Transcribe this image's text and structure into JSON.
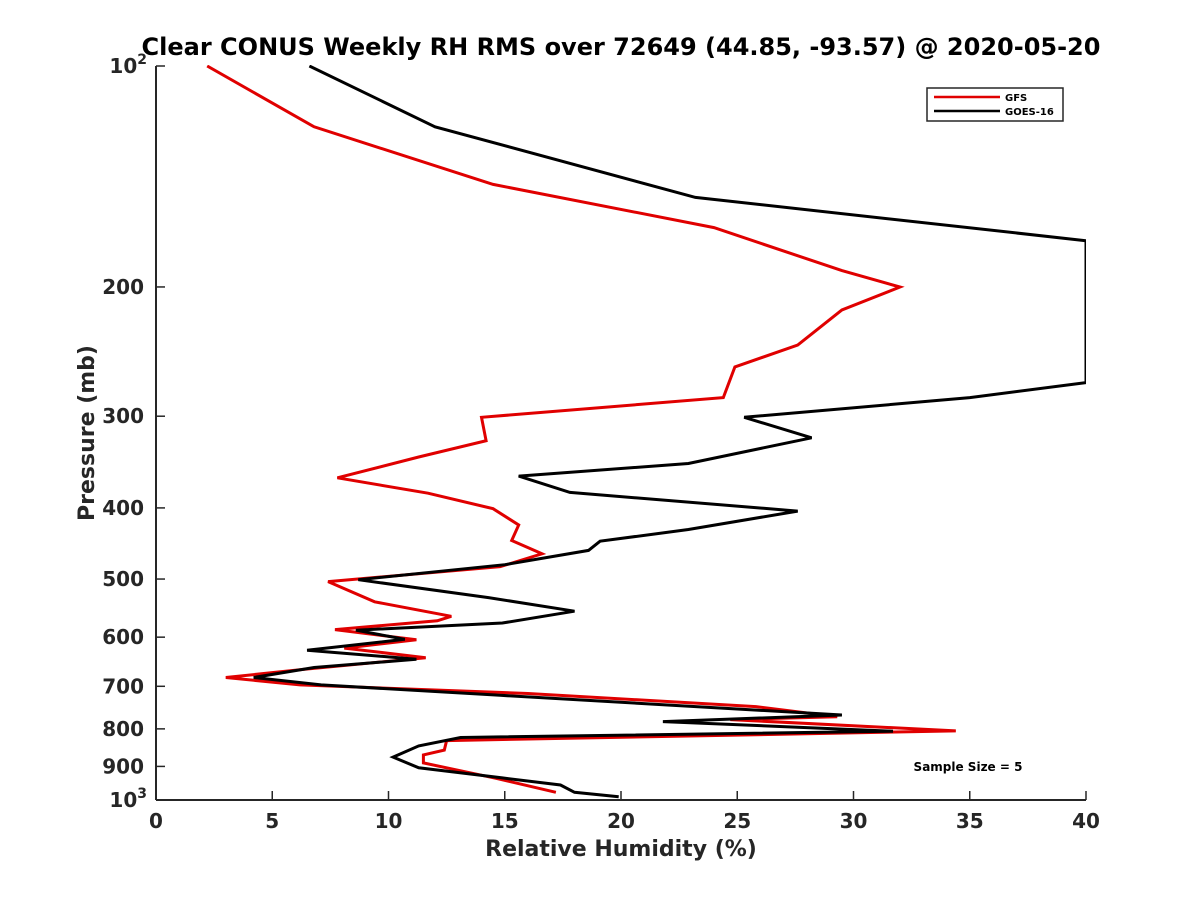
{
  "chart_data": {
    "type": "line",
    "title": "Clear CONUS Weekly RH RMS over 72649 (44.85, -93.57) @ 2020-05-20",
    "xlabel": "Relative Humidity (%)",
    "ylabel": "Pressure (mb)",
    "xlim": [
      0,
      40
    ],
    "ylim": [
      100,
      1000
    ],
    "y_scale": "log",
    "y_direction": "reversed",
    "x_ticks": [
      "0",
      "5",
      "10",
      "15",
      "20",
      "25",
      "30",
      "35",
      "40"
    ],
    "y_ticks": [
      {
        "value": 100,
        "base": "10",
        "exp": "2"
      },
      {
        "value": 200,
        "label": "200"
      },
      {
        "value": 300,
        "label": "300"
      },
      {
        "value": 400,
        "label": "400"
      },
      {
        "value": 500,
        "label": "500"
      },
      {
        "value": 600,
        "label": "600"
      },
      {
        "value": 700,
        "label": "700"
      },
      {
        "value": 800,
        "label": "800"
      },
      {
        "value": 900,
        "label": "900"
      },
      {
        "value": 1000,
        "base": "10",
        "exp": "3"
      }
    ],
    "grid": false,
    "legend_position": "top-right",
    "annotation": "Sample Size = 5",
    "series": [
      {
        "name": "GFS",
        "color": "#e00000",
        "points": [
          [
            2.2,
            100
          ],
          [
            6.8,
            121
          ],
          [
            14.5,
            145
          ],
          [
            24.0,
            166
          ],
          [
            29.5,
            190
          ],
          [
            32.0,
            200
          ],
          [
            29.5,
            215
          ],
          [
            27.6,
            240
          ],
          [
            24.9,
            257
          ],
          [
            24.4,
            283
          ],
          [
            14.0,
            301
          ],
          [
            14.2,
            324
          ],
          [
            11.3,
            341
          ],
          [
            7.8,
            364
          ],
          [
            11.7,
            382
          ],
          [
            14.5,
            401
          ],
          [
            15.6,
            422
          ],
          [
            15.3,
            443
          ],
          [
            16.6,
            462
          ],
          [
            14.8,
            481
          ],
          [
            7.4,
            504
          ],
          [
            9.4,
            537
          ],
          [
            12.7,
            562
          ],
          [
            12.1,
            570
          ],
          [
            7.7,
            586
          ],
          [
            11.2,
            605
          ],
          [
            8.1,
            621
          ],
          [
            11.6,
            640
          ],
          [
            6.5,
            663
          ],
          [
            3.0,
            681
          ],
          [
            6.2,
            697
          ],
          [
            16.0,
            716
          ],
          [
            25.8,
            746
          ],
          [
            29.3,
            770
          ],
          [
            24.7,
            777
          ],
          [
            34.4,
            805
          ],
          [
            12.5,
            830
          ],
          [
            12.4,
            855
          ],
          [
            11.5,
            868
          ],
          [
            11.5,
            890
          ],
          [
            14.6,
            934
          ],
          [
            17.2,
            976
          ]
        ]
      },
      {
        "name": "GOES-16",
        "color": "#000000",
        "points": [
          [
            6.6,
            100
          ],
          [
            12.0,
            121
          ],
          [
            23.2,
            151
          ],
          [
            40.0,
            173
          ],
          [
            40.0,
            270
          ],
          [
            35.0,
            283
          ],
          [
            25.3,
            301
          ],
          [
            28.2,
            321
          ],
          [
            22.9,
            348
          ],
          [
            15.6,
            362
          ],
          [
            17.8,
            381
          ],
          [
            27.6,
            404
          ],
          [
            22.9,
            428
          ],
          [
            19.1,
            444
          ],
          [
            18.6,
            457
          ],
          [
            15.0,
            478
          ],
          [
            8.7,
            501
          ],
          [
            14.3,
            530
          ],
          [
            18.0,
            553
          ],
          [
            14.9,
            574
          ],
          [
            8.6,
            587
          ],
          [
            10.7,
            604
          ],
          [
            6.5,
            625
          ],
          [
            11.2,
            643
          ],
          [
            6.8,
            660
          ],
          [
            4.2,
            681
          ],
          [
            7.1,
            697
          ],
          [
            14.8,
            720
          ],
          [
            29.5,
            766
          ],
          [
            21.8,
            782
          ],
          [
            31.7,
            806
          ],
          [
            13.1,
            822
          ],
          [
            11.3,
            844
          ],
          [
            10.2,
            874
          ],
          [
            11.3,
            904
          ],
          [
            14.9,
            933
          ],
          [
            17.4,
            954
          ],
          [
            18.0,
            976
          ],
          [
            19.9,
            990
          ]
        ]
      }
    ]
  }
}
